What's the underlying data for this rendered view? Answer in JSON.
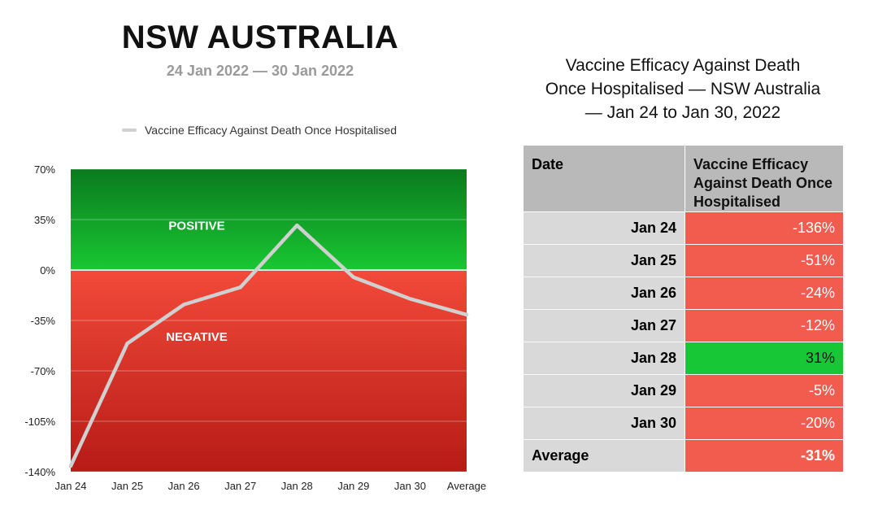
{
  "header": {
    "title": "NSW AUSTRALIA",
    "subtitle": "24 Jan 2022 — 30 Jan 2022"
  },
  "chart_data": {
    "type": "line",
    "title": "",
    "xlabel": "",
    "ylabel": "",
    "categories": [
      "Jan 24",
      "Jan 25",
      "Jan 26",
      "Jan 27",
      "Jan 28",
      "Jan 29",
      "Jan 30",
      "Average"
    ],
    "series": [
      {
        "name": "Vaccine Efficacy Against Death Once Hospitalised",
        "values": [
          -136,
          -51,
          -24,
          -12,
          31,
          -5,
          -20,
          -31
        ],
        "color": "#d0d0d0"
      }
    ],
    "ylim": [
      -140,
      70
    ],
    "yticks": [
      "70%",
      "35%",
      "0%",
      "-35%",
      "-70%",
      "-105%",
      "-140%"
    ],
    "ytick_values": [
      70,
      35,
      0,
      -35,
      -70,
      -105,
      -140
    ],
    "legend_position": "top",
    "grid": true,
    "regions": [
      {
        "label": "POSITIVE",
        "from": 0,
        "to": 70,
        "color": "#11b02a"
      },
      {
        "label": "NEGATIVE",
        "from": -140,
        "to": 0,
        "color": "#e3382e"
      }
    ]
  },
  "table": {
    "title_lines": [
      "Vaccine Efficacy Against Death",
      "Once Hospitalised — NSW Australia",
      "— Jan 24 to Jan 30, 2022"
    ],
    "headers": [
      "Date",
      "Vaccine Efficacy Against Death Once Hospitalised"
    ],
    "rows": [
      {
        "date": "Jan 24",
        "value": "-136%",
        "status": "negative"
      },
      {
        "date": "Jan 25",
        "value": "-51%",
        "status": "negative"
      },
      {
        "date": "Jan 26",
        "value": "-24%",
        "status": "negative"
      },
      {
        "date": "Jan 27",
        "value": "-12%",
        "status": "negative"
      },
      {
        "date": "Jan 28",
        "value": "31%",
        "status": "positive"
      },
      {
        "date": "Jan 29",
        "value": "-5%",
        "status": "negative"
      },
      {
        "date": "Jan 30",
        "value": "-20%",
        "status": "negative"
      }
    ],
    "average": {
      "label": "Average",
      "value": "-31%",
      "status": "negative"
    },
    "colors": {
      "negative": "#f25c4e",
      "positive": "#18c736",
      "date_bg": "#d9d9d9",
      "header_bg": "#b9b9b9"
    }
  }
}
